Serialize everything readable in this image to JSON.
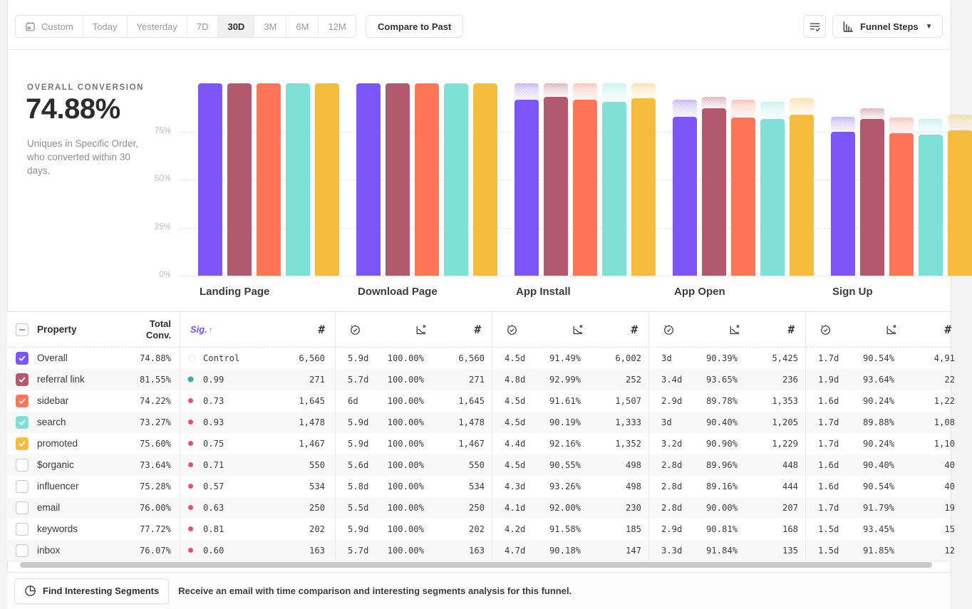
{
  "toolbar": {
    "date_ranges": [
      "Custom",
      "Today",
      "Yesterday",
      "7D",
      "30D",
      "3M",
      "6M",
      "12M"
    ],
    "active_range": "30D",
    "compare_to_past_label": "Compare to Past",
    "funnel_steps_label": "Funnel Steps"
  },
  "summary": {
    "label": "OVERALL CONVERSION",
    "value": "74.88%",
    "description": "Uniques in Specific Order, who converted within 30 days."
  },
  "chart_data": {
    "type": "bar",
    "categories": [
      "Landing Page",
      "Download Page",
      "App Install",
      "App Open",
      "Sign Up"
    ],
    "y_ticks": [
      75,
      50,
      25,
      0
    ],
    "y_tick_labels": [
      "75%",
      "50%",
      "25%",
      "0%"
    ],
    "ylim": [
      0,
      100
    ],
    "series": [
      {
        "name": "Overall",
        "color": "#7C56F9",
        "values": [
          100,
          100,
          91.49,
          82.7,
          74.88
        ]
      },
      {
        "name": "referral link",
        "color": "#B2596D",
        "values": [
          100,
          100,
          92.99,
          87.08,
          81.55
        ]
      },
      {
        "name": "sidebar",
        "color": "#FF7557",
        "values": [
          100,
          100,
          91.61,
          82.25,
          74.22
        ]
      },
      {
        "name": "search",
        "color": "#7FE0D8",
        "values": [
          100,
          100,
          90.19,
          81.53,
          73.27
        ]
      },
      {
        "name": "promoted",
        "color": "#F6BC3D",
        "values": [
          100,
          100,
          92.16,
          83.77,
          75.6
        ]
      }
    ]
  },
  "table": {
    "headers": {
      "property": "Property",
      "total_conv": "Total Conv.",
      "sig": "Sig.",
      "sort_arrow": "↑",
      "count_symbol": "#"
    },
    "rows": [
      {
        "name": "Overall",
        "checked": true,
        "color": "#7C56F9",
        "total": "74.88%",
        "sig": "Control",
        "sig_dot": "control",
        "steps": [
          {
            "count": "6,560"
          },
          {
            "time": "5.9d",
            "conv": "100.00%",
            "count": "6,560"
          },
          {
            "time": "4.5d",
            "conv": "91.49%",
            "count": "6,002"
          },
          {
            "time": "3d",
            "conv": "90.39%",
            "count": "5,425"
          },
          {
            "time": "1.7d",
            "conv": "90.54%",
            "count": "4,91"
          }
        ]
      },
      {
        "name": "referral link",
        "checked": true,
        "color": "#B2596D",
        "total": "81.55%",
        "sig": "0.99",
        "sig_dot": "teal",
        "steps": [
          {
            "count": "271"
          },
          {
            "time": "5.7d",
            "conv": "100.00%",
            "count": "271"
          },
          {
            "time": "4.8d",
            "conv": "92.99%",
            "count": "252"
          },
          {
            "time": "3.4d",
            "conv": "93.65%",
            "count": "236"
          },
          {
            "time": "1.9d",
            "conv": "93.64%",
            "count": "22"
          }
        ]
      },
      {
        "name": "sidebar",
        "checked": true,
        "color": "#FF7557",
        "total": "74.22%",
        "sig": "0.73",
        "sig_dot": "pink",
        "steps": [
          {
            "count": "1,645"
          },
          {
            "time": "6d",
            "conv": "100.00%",
            "count": "1,645"
          },
          {
            "time": "4.5d",
            "conv": "91.61%",
            "count": "1,507"
          },
          {
            "time": "2.9d",
            "conv": "89.78%",
            "count": "1,353"
          },
          {
            "time": "1.6d",
            "conv": "90.24%",
            "count": "1,22"
          }
        ]
      },
      {
        "name": "search",
        "checked": true,
        "color": "#7FE0D8",
        "total": "73.27%",
        "sig": "0.93",
        "sig_dot": "pink",
        "steps": [
          {
            "count": "1,478"
          },
          {
            "time": "5.9d",
            "conv": "100.00%",
            "count": "1,478"
          },
          {
            "time": "4.5d",
            "conv": "90.19%",
            "count": "1,333"
          },
          {
            "time": "3d",
            "conv": "90.40%",
            "count": "1,205"
          },
          {
            "time": "1.7d",
            "conv": "89.88%",
            "count": "1,08"
          }
        ]
      },
      {
        "name": "promoted",
        "checked": true,
        "color": "#F6BC3D",
        "total": "75.60%",
        "sig": "0.75",
        "sig_dot": "pink",
        "steps": [
          {
            "count": "1,467"
          },
          {
            "time": "5.9d",
            "conv": "100.00%",
            "count": "1,467"
          },
          {
            "time": "4.4d",
            "conv": "92.16%",
            "count": "1,352"
          },
          {
            "time": "3.2d",
            "conv": "90.90%",
            "count": "1,229"
          },
          {
            "time": "1.7d",
            "conv": "90.24%",
            "count": "1,10"
          }
        ]
      },
      {
        "name": "$organic",
        "checked": false,
        "color": null,
        "total": "73.64%",
        "sig": "0.71",
        "sig_dot": "pink",
        "steps": [
          {
            "count": "550"
          },
          {
            "time": "5.6d",
            "conv": "100.00%",
            "count": "550"
          },
          {
            "time": "4.5d",
            "conv": "90.55%",
            "count": "498"
          },
          {
            "time": "2.8d",
            "conv": "89.96%",
            "count": "448"
          },
          {
            "time": "1.6d",
            "conv": "90.40%",
            "count": "40"
          }
        ]
      },
      {
        "name": "influencer",
        "checked": false,
        "color": null,
        "total": "75.28%",
        "sig": "0.57",
        "sig_dot": "pink",
        "steps": [
          {
            "count": "534"
          },
          {
            "time": "5.8d",
            "conv": "100.00%",
            "count": "534"
          },
          {
            "time": "4.3d",
            "conv": "93.26%",
            "count": "498"
          },
          {
            "time": "2.8d",
            "conv": "89.16%",
            "count": "444"
          },
          {
            "time": "1.6d",
            "conv": "90.54%",
            "count": "40"
          }
        ]
      },
      {
        "name": "email",
        "checked": false,
        "color": null,
        "total": "76.00%",
        "sig": "0.63",
        "sig_dot": "pink",
        "steps": [
          {
            "count": "250"
          },
          {
            "time": "5.5d",
            "conv": "100.00%",
            "count": "250"
          },
          {
            "time": "4.1d",
            "conv": "92.00%",
            "count": "230"
          },
          {
            "time": "2.8d",
            "conv": "90.00%",
            "count": "207"
          },
          {
            "time": "1.7d",
            "conv": "91.79%",
            "count": "19"
          }
        ]
      },
      {
        "name": "keywords",
        "checked": false,
        "color": null,
        "total": "77.72%",
        "sig": "0.81",
        "sig_dot": "pink",
        "steps": [
          {
            "count": "202"
          },
          {
            "time": "5.9d",
            "conv": "100.00%",
            "count": "202"
          },
          {
            "time": "4.2d",
            "conv": "91.58%",
            "count": "185"
          },
          {
            "time": "2.9d",
            "conv": "90.81%",
            "count": "168"
          },
          {
            "time": "1.5d",
            "conv": "93.45%",
            "count": "15"
          }
        ]
      },
      {
        "name": "inbox",
        "checked": false,
        "color": null,
        "total": "76.07%",
        "sig": "0.60",
        "sig_dot": "pink",
        "steps": [
          {
            "count": "163"
          },
          {
            "time": "5.7d",
            "conv": "100.00%",
            "count": "163"
          },
          {
            "time": "4.7d",
            "conv": "90.18%",
            "count": "147"
          },
          {
            "time": "3.3d",
            "conv": "91.84%",
            "count": "135"
          },
          {
            "time": "1.5d",
            "conv": "91.85%",
            "count": "12"
          }
        ]
      }
    ]
  },
  "footer": {
    "find_segments_label": "Find Interesting Segments",
    "message": "Receive an email with time comparison and interesting segments analysis for this funnel."
  }
}
